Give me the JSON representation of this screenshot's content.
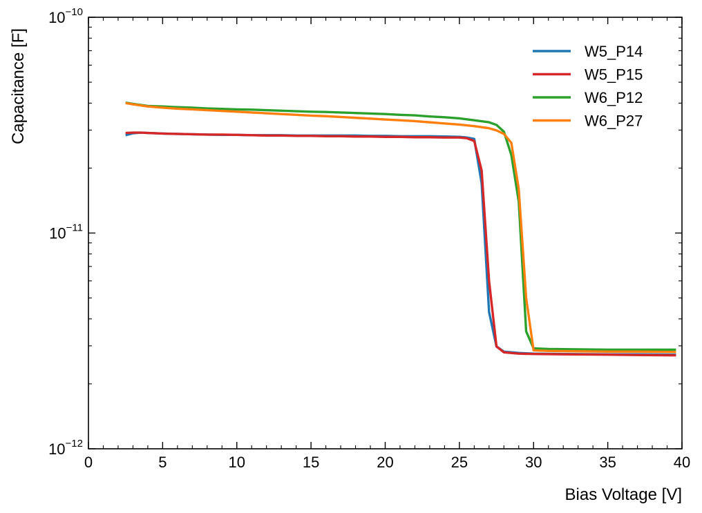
{
  "chart_data": {
    "type": "line",
    "title": "",
    "xlabel": "Bias Voltage [V]",
    "ylabel": "Capacitance [F]",
    "xlim": [
      0,
      40
    ],
    "ylim": [
      1e-12,
      1e-10
    ],
    "yscale": "log",
    "grid": false,
    "legend_position": "top-right",
    "x_ticks": [
      {
        "value": 0,
        "label": "0"
      },
      {
        "value": 5,
        "label": "5"
      },
      {
        "value": 10,
        "label": "10"
      },
      {
        "value": 15,
        "label": "15"
      },
      {
        "value": 20,
        "label": "20"
      },
      {
        "value": 25,
        "label": "25"
      },
      {
        "value": 30,
        "label": "30"
      },
      {
        "value": 35,
        "label": "35"
      },
      {
        "value": 40,
        "label": "40"
      }
    ],
    "y_ticks": [
      {
        "value": 1e-10,
        "base": "10",
        "exponent": "−10"
      },
      {
        "value": 1e-11,
        "base": "10",
        "exponent": "−11"
      },
      {
        "value": 1e-12,
        "base": "10",
        "exponent": "−12"
      }
    ],
    "series": [
      {
        "name": "W5_P14",
        "color": "#1f77b4",
        "points": [
          [
            2.5,
            2.84e-11
          ],
          [
            3.0,
            2.9e-11
          ],
          [
            3.5,
            2.92e-11
          ],
          [
            4.0,
            2.91e-11
          ],
          [
            5.0,
            2.89e-11
          ],
          [
            6.0,
            2.88e-11
          ],
          [
            7.0,
            2.87e-11
          ],
          [
            8.0,
            2.86e-11
          ],
          [
            9.0,
            2.85e-11
          ],
          [
            10.0,
            2.85e-11
          ],
          [
            11.0,
            2.84e-11
          ],
          [
            12.0,
            2.84e-11
          ],
          [
            13.0,
            2.84e-11
          ],
          [
            14.0,
            2.83e-11
          ],
          [
            15.0,
            2.83e-11
          ],
          [
            16.0,
            2.83e-11
          ],
          [
            17.0,
            2.83e-11
          ],
          [
            18.0,
            2.83e-11
          ],
          [
            19.0,
            2.82e-11
          ],
          [
            20.0,
            2.82e-11
          ],
          [
            21.0,
            2.81e-11
          ],
          [
            22.0,
            2.81e-11
          ],
          [
            23.0,
            2.81e-11
          ],
          [
            24.0,
            2.8e-11
          ],
          [
            25.0,
            2.79e-11
          ],
          [
            25.5,
            2.77e-11
          ],
          [
            26.0,
            2.73e-11
          ],
          [
            26.5,
            1.7e-11
          ],
          [
            27.0,
            4.3e-12
          ],
          [
            27.5,
            2.98e-12
          ],
          [
            28.0,
            2.82e-12
          ],
          [
            29.0,
            2.78e-12
          ],
          [
            30.0,
            2.76e-12
          ],
          [
            32.0,
            2.75e-12
          ],
          [
            35.0,
            2.74e-12
          ],
          [
            37.0,
            2.74e-12
          ],
          [
            39.6,
            2.73e-12
          ]
        ]
      },
      {
        "name": "W5_P15",
        "color": "#d62728",
        "points": [
          [
            2.5,
            2.91e-11
          ],
          [
            3.0,
            2.92e-11
          ],
          [
            3.5,
            2.92e-11
          ],
          [
            4.0,
            2.91e-11
          ],
          [
            5.0,
            2.89e-11
          ],
          [
            6.0,
            2.88e-11
          ],
          [
            7.0,
            2.87e-11
          ],
          [
            8.0,
            2.86e-11
          ],
          [
            9.0,
            2.86e-11
          ],
          [
            10.0,
            2.85e-11
          ],
          [
            11.0,
            2.84e-11
          ],
          [
            12.0,
            2.83e-11
          ],
          [
            13.0,
            2.83e-11
          ],
          [
            14.0,
            2.82e-11
          ],
          [
            15.0,
            2.82e-11
          ],
          [
            16.0,
            2.81e-11
          ],
          [
            17.0,
            2.81e-11
          ],
          [
            18.0,
            2.8e-11
          ],
          [
            19.0,
            2.8e-11
          ],
          [
            20.0,
            2.79e-11
          ],
          [
            21.0,
            2.79e-11
          ],
          [
            22.0,
            2.78e-11
          ],
          [
            23.0,
            2.78e-11
          ],
          [
            24.0,
            2.77e-11
          ],
          [
            25.0,
            2.77e-11
          ],
          [
            25.5,
            2.75e-11
          ],
          [
            26.0,
            2.67e-11
          ],
          [
            26.5,
            1.95e-11
          ],
          [
            27.0,
            6e-12
          ],
          [
            27.5,
            2.98e-12
          ],
          [
            28.0,
            2.8e-12
          ],
          [
            29.0,
            2.76e-12
          ],
          [
            30.0,
            2.75e-12
          ],
          [
            32.0,
            2.74e-12
          ],
          [
            35.0,
            2.73e-12
          ],
          [
            37.0,
            2.72e-12
          ],
          [
            39.6,
            2.71e-12
          ]
        ]
      },
      {
        "name": "W6_P12",
        "color": "#2ca02c",
        "points": [
          [
            2.5,
            4.02e-11
          ],
          [
            3.0,
            3.97e-11
          ],
          [
            4.0,
            3.88e-11
          ],
          [
            5.0,
            3.86e-11
          ],
          [
            6.0,
            3.83e-11
          ],
          [
            7.0,
            3.81e-11
          ],
          [
            8.0,
            3.78e-11
          ],
          [
            9.0,
            3.76e-11
          ],
          [
            10.0,
            3.74e-11
          ],
          [
            11.0,
            3.73e-11
          ],
          [
            12.0,
            3.71e-11
          ],
          [
            13.0,
            3.69e-11
          ],
          [
            14.0,
            3.67e-11
          ],
          [
            15.0,
            3.65e-11
          ],
          [
            16.0,
            3.64e-11
          ],
          [
            17.0,
            3.62e-11
          ],
          [
            18.0,
            3.6e-11
          ],
          [
            19.0,
            3.58e-11
          ],
          [
            20.0,
            3.56e-11
          ],
          [
            21.0,
            3.53e-11
          ],
          [
            22.0,
            3.51e-11
          ],
          [
            23.0,
            3.47e-11
          ],
          [
            24.0,
            3.44e-11
          ],
          [
            25.0,
            3.4e-11
          ],
          [
            26.0,
            3.33e-11
          ],
          [
            27.0,
            3.26e-11
          ],
          [
            27.5,
            3.17e-11
          ],
          [
            28.0,
            2.95e-11
          ],
          [
            28.5,
            2.3e-11
          ],
          [
            29.0,
            1.4e-11
          ],
          [
            29.5,
            3.5e-12
          ],
          [
            30.0,
            2.92e-12
          ],
          [
            31.0,
            2.9e-12
          ],
          [
            33.0,
            2.89e-12
          ],
          [
            35.0,
            2.88e-12
          ],
          [
            37.0,
            2.88e-12
          ],
          [
            39.6,
            2.88e-12
          ]
        ]
      },
      {
        "name": "W6_P27",
        "color": "#ff7f0e",
        "points": [
          [
            2.5,
            4e-11
          ],
          [
            3.0,
            3.95e-11
          ],
          [
            4.0,
            3.86e-11
          ],
          [
            5.0,
            3.81e-11
          ],
          [
            6.0,
            3.77e-11
          ],
          [
            7.0,
            3.74e-11
          ],
          [
            8.0,
            3.71e-11
          ],
          [
            9.0,
            3.68e-11
          ],
          [
            10.0,
            3.65e-11
          ],
          [
            11.0,
            3.62e-11
          ],
          [
            12.0,
            3.59e-11
          ],
          [
            13.0,
            3.56e-11
          ],
          [
            14.0,
            3.53e-11
          ],
          [
            15.0,
            3.5e-11
          ],
          [
            16.0,
            3.48e-11
          ],
          [
            17.0,
            3.45e-11
          ],
          [
            18.0,
            3.42e-11
          ],
          [
            19.0,
            3.39e-11
          ],
          [
            20.0,
            3.36e-11
          ],
          [
            21.0,
            3.33e-11
          ],
          [
            22.0,
            3.3e-11
          ],
          [
            23.0,
            3.26e-11
          ],
          [
            24.0,
            3.22e-11
          ],
          [
            25.0,
            3.18e-11
          ],
          [
            26.0,
            3.13e-11
          ],
          [
            27.0,
            3.06e-11
          ],
          [
            27.5,
            2.99e-11
          ],
          [
            28.0,
            2.88e-11
          ],
          [
            28.5,
            2.62e-11
          ],
          [
            29.0,
            1.6e-11
          ],
          [
            29.5,
            5e-12
          ],
          [
            30.0,
            2.86e-12
          ],
          [
            31.0,
            2.84e-12
          ],
          [
            33.0,
            2.83e-12
          ],
          [
            35.0,
            2.82e-12
          ],
          [
            37.0,
            2.82e-12
          ],
          [
            39.6,
            2.81e-12
          ]
        ]
      }
    ]
  }
}
